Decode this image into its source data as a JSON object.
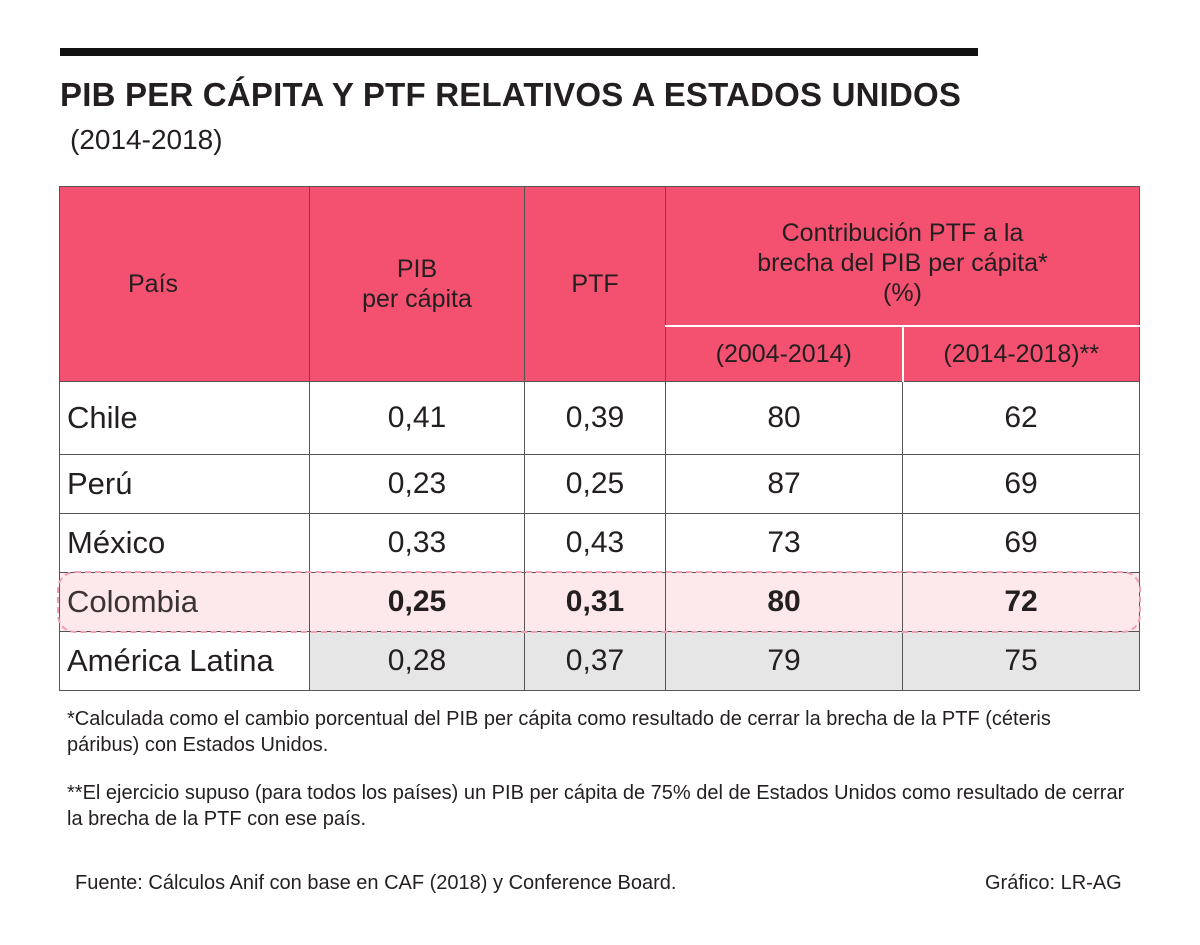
{
  "header": {
    "title": "PIB PER CÁPITA Y PTF RELATIVOS A ESTADOS UNIDOS",
    "subtitle": "(2014-2018)"
  },
  "colors": {
    "header_bg": "#f45070",
    "highlight_row_bg": "#fde8eb",
    "latam_row_bg": "#e6e6e6",
    "top_rule": "#111111"
  },
  "chart_data": {
    "type": "table",
    "title": "PIB PER CÁPITA Y PTF RELATIVOS A ESTADOS UNIDOS",
    "subtitle": "(2014-2018)",
    "columns": {
      "country": "País",
      "pib": "PIB\nper cápita",
      "ptf": "PTF",
      "contrib_group": "Contribución PTF a la\nbrecha del PIB per cápita*\n(%)",
      "contrib_2004_2014": "(2004-2014)",
      "contrib_2014_2018": "(2014-2018)**"
    },
    "rows": [
      {
        "country": "Chile",
        "pib": "0,41",
        "ptf": "0,39",
        "c1": "80",
        "c2": "62",
        "highlight": false
      },
      {
        "country": "Perú",
        "pib": "0,23",
        "ptf": "0,25",
        "c1": "87",
        "c2": "69",
        "highlight": false
      },
      {
        "country": "México",
        "pib": "0,33",
        "ptf": "0,43",
        "c1": "73",
        "c2": "69",
        "highlight": false
      },
      {
        "country": "Colombia",
        "pib": "0,25",
        "ptf": "0,31",
        "c1": "80",
        "c2": "72",
        "highlight": true
      },
      {
        "country": "América Latina",
        "pib": "0,28",
        "ptf": "0,37",
        "c1": "79",
        "c2": "75",
        "highlight": false
      }
    ]
  },
  "notes": {
    "note1": "*Calculada como el cambio porcentual del PIB per cápita como resultado de cerrar la brecha de la PTF (céteris páribus) con Estados Unidos.",
    "note2": "**El ejercicio supuso (para todos los países) un PIB per cápita de 75% del de Estados Unidos como resultado de cerrar la brecha de la PTF con ese país."
  },
  "footer": {
    "source": "Fuente: Cálculos Anif con base en CAF (2018) y Conference Board.",
    "credit": "Gráfico: LR-AG"
  }
}
